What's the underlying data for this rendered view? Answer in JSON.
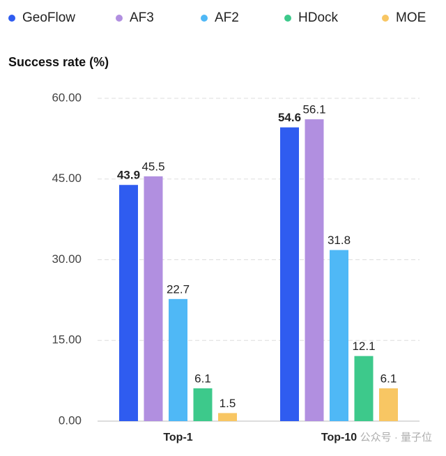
{
  "chart_data": {
    "type": "bar",
    "y_axis_label": "Success rate (%)",
    "categories": [
      "Top-1",
      "Top-10"
    ],
    "series": [
      {
        "name": "GeoFlow",
        "color": "#2f5cf0",
        "values": [
          43.9,
          54.6
        ]
      },
      {
        "name": "AF3",
        "color": "#b18fe0",
        "values": [
          45.5,
          56.1
        ]
      },
      {
        "name": "AF2",
        "color": "#4fb8f6",
        "values": [
          22.7,
          31.8
        ]
      },
      {
        "name": "HDock",
        "color": "#3dc98b",
        "values": [
          6.1,
          12.1
        ]
      },
      {
        "name": "MOE",
        "color": "#f8c663",
        "values": [
          1.5,
          6.1
        ]
      }
    ],
    "ylim": [
      0,
      60
    ],
    "yticks": [
      {
        "value": 0,
        "label": "0.00"
      },
      {
        "value": 15,
        "label": "15.00"
      },
      {
        "value": 30,
        "label": "30.00"
      },
      {
        "value": 45,
        "label": "45.00"
      },
      {
        "value": 60,
        "label": "60.00"
      }
    ],
    "grid": true,
    "legend_position": "top",
    "watermark": "公众号 · 量子位"
  }
}
